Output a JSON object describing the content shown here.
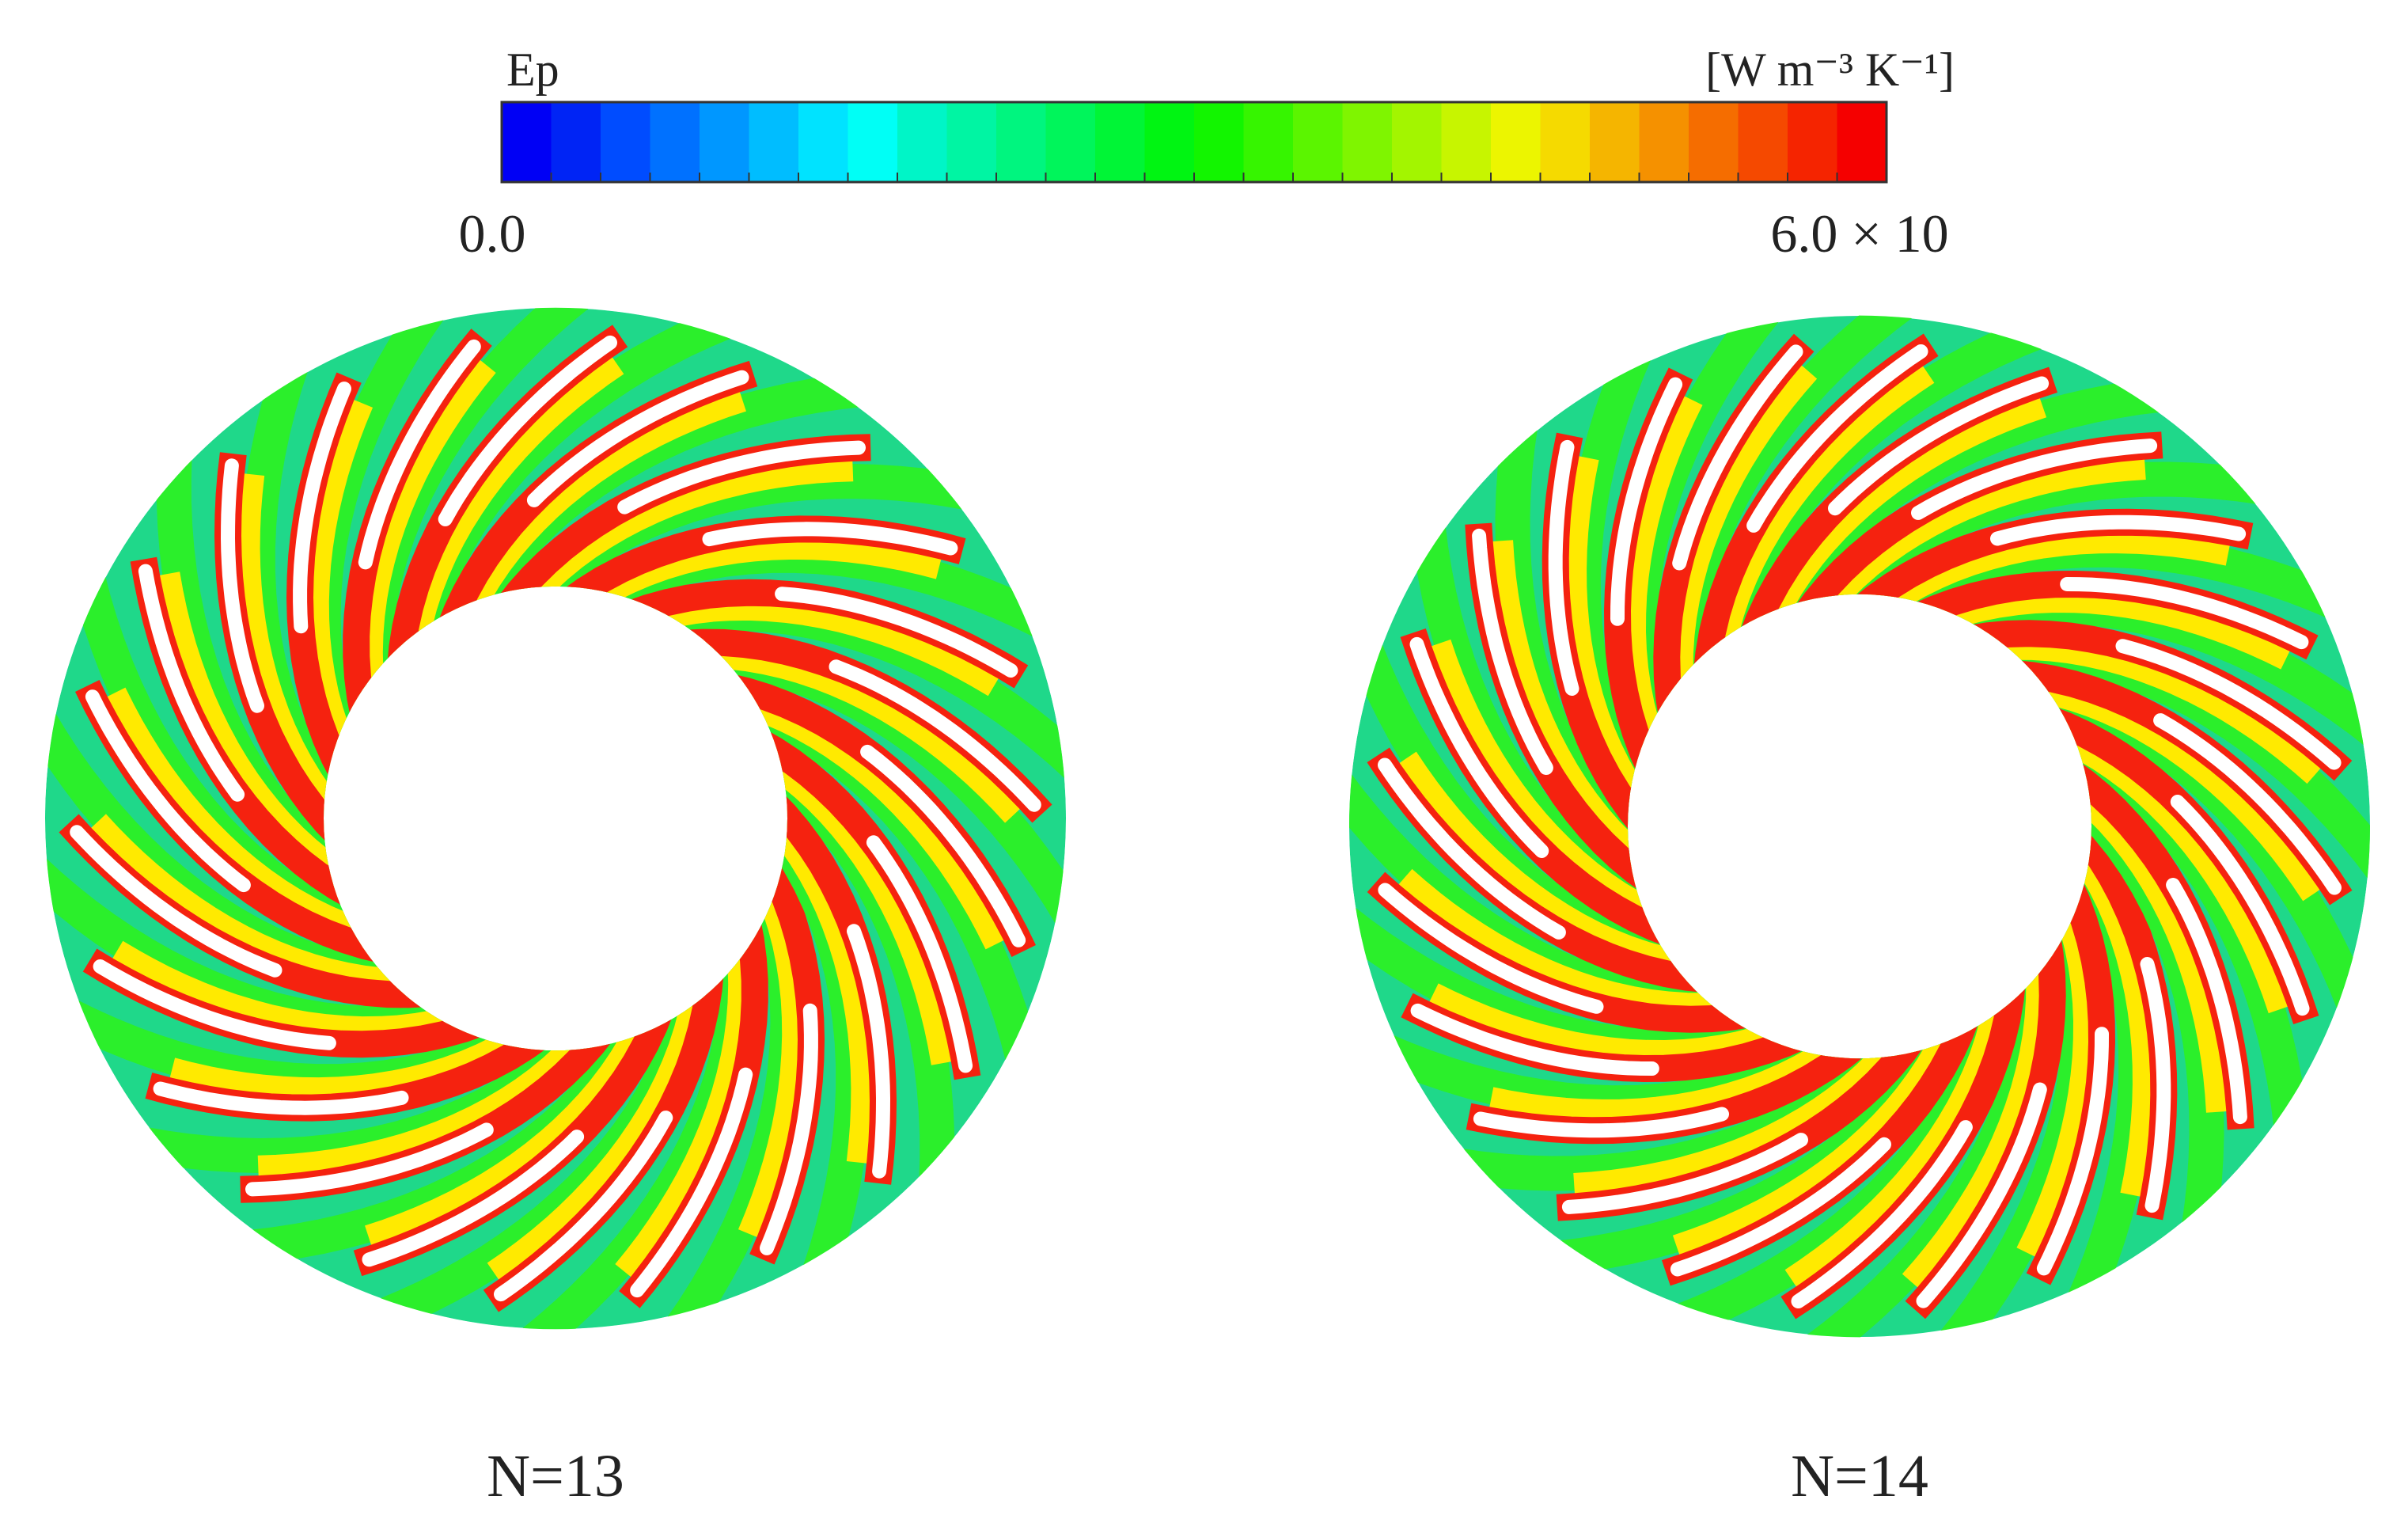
{
  "colorbar": {
    "variable": "Ep",
    "unit": "[W m⁻³ K⁻¹]",
    "min_label": "0.0",
    "max_label": "6.0 × 10"
  },
  "panels": [
    {
      "label": "N=13"
    },
    {
      "label": "N=14"
    }
  ]
}
